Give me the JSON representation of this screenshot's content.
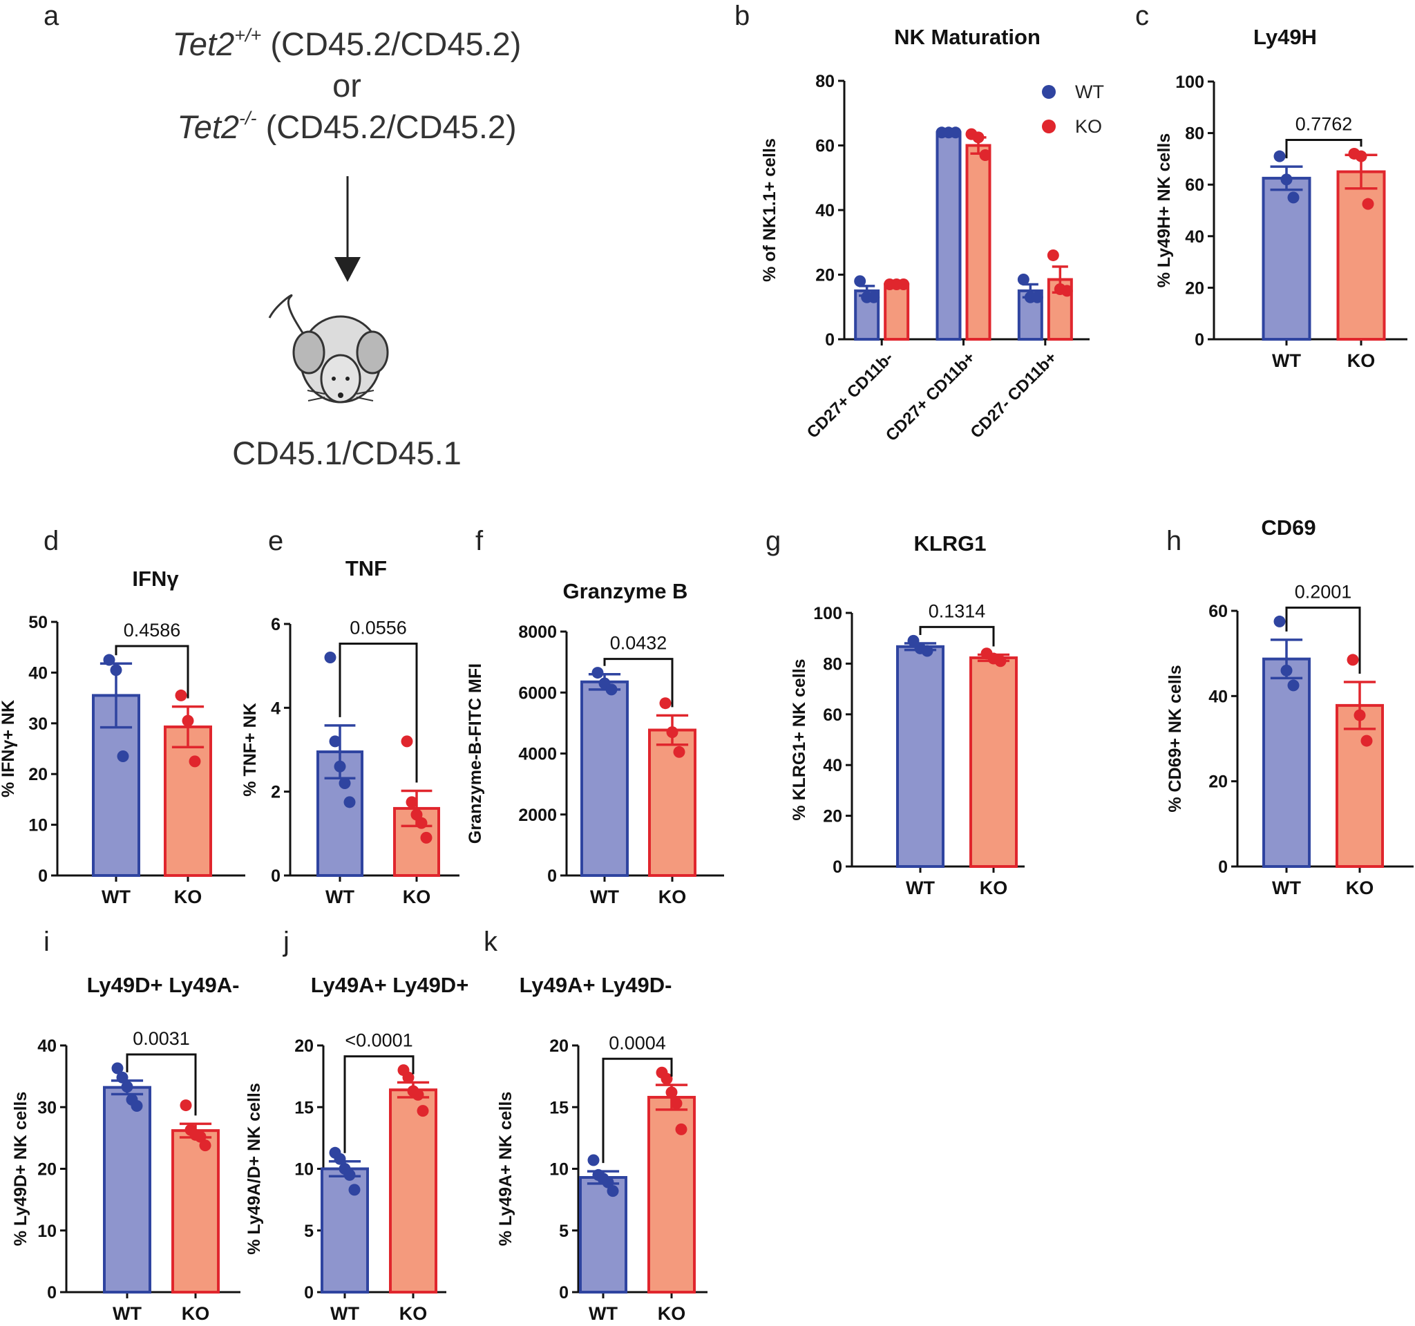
{
  "colors": {
    "wt_fill": "#8e95cd",
    "wt_edge": "#2f44a0",
    "ko_fill": "#f49a7d",
    "ko_edge": "#e0262d",
    "dot_wt": "#2f44a0",
    "dot_ko": "#e0262d"
  },
  "panel_a": {
    "letter": "a",
    "donor1_gene": "Tet2",
    "donor1_sup": "+/+",
    "donor1_rest": " (CD45.2/CD45.2)",
    "or": "or",
    "donor2_gene": "Tet2",
    "donor2_sup": "-/-",
    "donor2_rest": " (CD45.2/CD45.2)",
    "recipient": "CD45.1/CD45.1",
    "mouse_icon": "mouse-icon",
    "arrow_icon": "down-arrow-icon"
  },
  "chart_data": [
    {
      "id": "b",
      "letter": "b",
      "type": "bar",
      "title": "NK Maturation",
      "ylabel": "% of NK1.1+ cells",
      "ylim": [
        0,
        80
      ],
      "yticks": [
        "0",
        "20",
        "40",
        "60",
        "80"
      ],
      "categories": [
        "CD27+ CD11b-",
        "CD27+ CD11b+",
        "CD27- CD11b+"
      ],
      "legend": [
        "WT",
        "KO"
      ],
      "series": [
        {
          "name": "WT",
          "values": [
            15,
            64,
            15
          ],
          "sem": [
            1.5,
            0.3,
            2
          ],
          "points": [
            [
              18,
              13,
              13
            ],
            [
              64,
              64,
              64
            ],
            [
              18.5,
              13,
              13
            ]
          ]
        },
        {
          "name": "KO",
          "values": [
            17,
            60,
            18.5
          ],
          "sem": [
            0.5,
            2.5,
            4
          ],
          "points": [
            [
              17,
              17,
              17
            ],
            [
              63.5,
              62.5,
              57
            ],
            [
              26,
              15.5,
              15
            ]
          ]
        }
      ]
    },
    {
      "id": "c",
      "letter": "c",
      "type": "bar",
      "title": "Ly49H",
      "ylabel": "% Ly49H+ NK cells",
      "ylim": [
        0,
        100
      ],
      "yticks": [
        "0",
        "20",
        "40",
        "60",
        "80",
        "100"
      ],
      "categories": [
        "WT",
        "KO"
      ],
      "pvalue": "0.7762",
      "values": [
        62.5,
        65
      ],
      "sem": [
        4.5,
        6.5
      ],
      "points": [
        [
          71,
          62,
          55
        ],
        [
          72,
          71,
          52.5
        ]
      ]
    },
    {
      "id": "d",
      "letter": "d",
      "type": "bar",
      "title": "IFNγ",
      "ylabel": "% IFNγ+ NK",
      "ylim": [
        0,
        50
      ],
      "yticks": [
        "0",
        "10",
        "20",
        "30",
        "40",
        "50"
      ],
      "categories": [
        "WT",
        "KO"
      ],
      "pvalue": "0.4586",
      "values": [
        35.5,
        29.3
      ],
      "sem": [
        6.3,
        4
      ],
      "points": [
        [
          42.5,
          40.5,
          23.5
        ],
        [
          35.5,
          30.5,
          22.5
        ]
      ]
    },
    {
      "id": "e",
      "letter": "e",
      "type": "bar",
      "title": "TNF",
      "ylabel": "% TNF+ NK",
      "ylim": [
        0,
        6
      ],
      "yticks": [
        "0",
        "2",
        "4",
        "6"
      ],
      "categories": [
        "WT",
        "KO"
      ],
      "pvalue": "0.0556",
      "values": [
        2.95,
        1.6
      ],
      "sem": [
        0.63,
        0.42
      ],
      "points": [
        [
          5.2,
          3.2,
          2.6,
          2.2,
          1.75
        ],
        [
          3.2,
          1.75,
          1.45,
          1.25,
          0.9
        ]
      ]
    },
    {
      "id": "f",
      "letter": "f",
      "type": "bar",
      "title": "Granzyme B",
      "ylabel": "Granzyme-B-FITC MFI",
      "ylim": [
        0,
        8000
      ],
      "yticks": [
        "0",
        "2000",
        "4000",
        "6000",
        "8000"
      ],
      "categories": [
        "WT",
        "KO"
      ],
      "pvalue": "0.0432",
      "values": [
        6350,
        4770
      ],
      "sem": [
        250,
        480
      ],
      "points": [
        [
          6650,
          6300,
          6100
        ],
        [
          5650,
          4700,
          4050
        ]
      ]
    },
    {
      "id": "g",
      "letter": "g",
      "type": "bar",
      "title": "KLRG1",
      "ylabel": "% KLRG1+ NK cells",
      "ylim": [
        0,
        100
      ],
      "yticks": [
        "0",
        "20",
        "40",
        "60",
        "80",
        "100"
      ],
      "categories": [
        "WT",
        "KO"
      ],
      "pvalue": "0.1314",
      "values": [
        86.7,
        82.3
      ],
      "sem": [
        1.3,
        1.2
      ],
      "points": [
        [
          89,
          86,
          85
        ],
        [
          84,
          82,
          81
        ]
      ]
    },
    {
      "id": "h",
      "letter": "h",
      "type": "bar",
      "title": "CD69",
      "ylabel": "% CD69+ NK cells",
      "ylim": [
        0,
        60
      ],
      "yticks": [
        "0",
        "20",
        "40",
        "60"
      ],
      "categories": [
        "WT",
        "KO"
      ],
      "pvalue": "0.2001",
      "values": [
        48.7,
        37.8
      ],
      "sem": [
        4.5,
        5.5
      ],
      "points": [
        [
          57.5,
          46,
          42.5
        ],
        [
          48.5,
          35.5,
          29.5
        ]
      ]
    },
    {
      "id": "i",
      "letter": "i",
      "type": "bar",
      "title": "Ly49D+ Ly49A-",
      "ylabel": "% Ly49D+ NK cells",
      "ylim": [
        0,
        40
      ],
      "yticks": [
        "0",
        "10",
        "20",
        "30",
        "40"
      ],
      "categories": [
        "WT",
        "KO"
      ],
      "pvalue": "0.0031",
      "values": [
        33.2,
        26.2
      ],
      "sem": [
        1.1,
        1.1
      ],
      "points": [
        [
          36.3,
          34.8,
          33.3,
          31.2,
          30.2
        ],
        [
          30.3,
          26.3,
          25.5,
          25.2,
          23.8
        ]
      ]
    },
    {
      "id": "j",
      "letter": "j",
      "type": "bar",
      "title": "Ly49A+ Ly49D+",
      "ylabel": "% Ly49A/D+ NK cells",
      "ylim": [
        0,
        20
      ],
      "yticks": [
        "0",
        "5",
        "10",
        "15",
        "20"
      ],
      "categories": [
        "WT",
        "KO"
      ],
      "pvalue": "<0.0001",
      "values": [
        10,
        16.4
      ],
      "sem": [
        0.6,
        0.6
      ],
      "points": [
        [
          11.3,
          10.8,
          10,
          9.5,
          8.3
        ],
        [
          18,
          17.4,
          16.3,
          16,
          14.7
        ]
      ]
    },
    {
      "id": "k",
      "letter": "k",
      "type": "bar",
      "title": "Ly49A+ Ly49D-",
      "ylabel": "% Ly49A+ NK cells",
      "ylim": [
        0,
        20
      ],
      "yticks": [
        "0",
        "5",
        "10",
        "15",
        "20"
      ],
      "categories": [
        "WT",
        "KO"
      ],
      "pvalue": "0.0004",
      "values": [
        9.3,
        15.8
      ],
      "sem": [
        0.5,
        1.0
      ],
      "points": [
        [
          10.7,
          9.5,
          9.2,
          8.9,
          8.2
        ],
        [
          17.8,
          17.3,
          16.2,
          15.3,
          13.2
        ]
      ]
    }
  ]
}
